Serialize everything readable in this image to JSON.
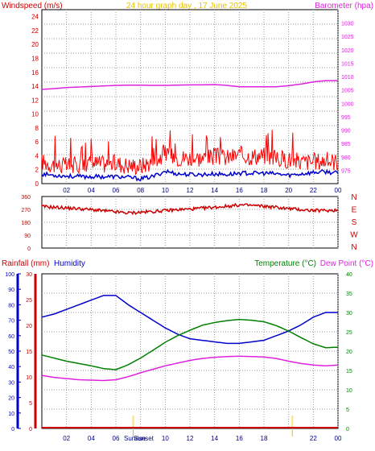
{
  "header": {
    "left_title": "Windspeed (m/s)",
    "center_title": "24 hour graph day , 17 June 2025",
    "right_title": "Barometer (hpa)"
  },
  "colors": {
    "wind_speed": "#ff0000",
    "wind_avg": "#0000cc",
    "barometer": "#dd22dd",
    "wind_dir": "#cc0000",
    "humidity": "#0000cc",
    "temperature": "#008000",
    "dew_point": "#dd22dd",
    "rainfall": "#cc0000",
    "grid": "#9a9a9a",
    "center_title": "#e8c400",
    "sun_marker": "#ffe27a"
  },
  "chart_data": [
    {
      "type": "line",
      "title": "24 hour graph day , 17 June 2025",
      "ylabel": "Windspeed (m/s)",
      "y2label": "Barometer (hpa)",
      "ylim": [
        0,
        25
      ],
      "y2lim": [
        970,
        1035
      ],
      "yticks": [
        "0",
        "2",
        "4",
        "6",
        "8",
        "10",
        "12",
        "14",
        "16",
        "18",
        "20",
        "22",
        "24"
      ],
      "y2ticks": [
        "975",
        "980",
        "985",
        "990",
        "995",
        "1000",
        "1005",
        "1010",
        "1015",
        "1020",
        "1025",
        "1030"
      ],
      "xticks": [
        "02",
        "04",
        "06",
        "08",
        "10",
        "12",
        "14",
        "16",
        "18",
        "20",
        "22",
        "00"
      ],
      "x": [
        0,
        1,
        2,
        3,
        4,
        5,
        6,
        7,
        8,
        9,
        10,
        11,
        12,
        13,
        14,
        15,
        16,
        17,
        18,
        19,
        20,
        21,
        22,
        23,
        24
      ],
      "series": [
        {
          "key": "wind_speed",
          "values": [
            3.0,
            2.6,
            2.4,
            2.6,
            2.8,
            2.7,
            2.8,
            2.5,
            2.4,
            3.0,
            4.2,
            3.6,
            3.6,
            3.5,
            3.8,
            3.6,
            4.0,
            3.8,
            3.9,
            3.5,
            3.3,
            3.0,
            3.0,
            3.2,
            3.0
          ]
        },
        {
          "key": "wind_avg",
          "values": [
            1.4,
            1.2,
            1.1,
            1.0,
            1.0,
            1.0,
            1.0,
            0.9,
            0.7,
            1.0,
            1.8,
            1.4,
            1.3,
            1.3,
            1.4,
            1.3,
            1.5,
            1.5,
            1.5,
            1.4,
            1.2,
            1.4,
            1.6,
            1.7,
            1.5
          ]
        },
        {
          "key": "barometer",
          "values": [
            1005.2,
            1005.5,
            1005.9,
            1006.1,
            1006.3,
            1006.5,
            1006.7,
            1006.8,
            1006.8,
            1006.7,
            1006.7,
            1006.8,
            1006.9,
            1006.9,
            1007.0,
            1006.7,
            1006.2,
            1006.2,
            1006.2,
            1006.2,
            1006.6,
            1007.2,
            1008.0,
            1008.5,
            1008.5
          ]
        }
      ]
    },
    {
      "type": "line",
      "series_key": "wind_dir",
      "ylim": [
        0,
        360
      ],
      "yticks": [
        "0",
        "90",
        "180",
        "270",
        "360"
      ],
      "y2ticks": [
        "N",
        "E",
        "S",
        "W",
        "N"
      ],
      "x": [
        0,
        1,
        2,
        3,
        4,
        5,
        6,
        7,
        8,
        9,
        10,
        11,
        12,
        13,
        14,
        15,
        16,
        17,
        18,
        19,
        20,
        21,
        22,
        23,
        24
      ],
      "values": [
        290,
        285,
        280,
        275,
        268,
        260,
        252,
        245,
        250,
        255,
        262,
        268,
        272,
        278,
        285,
        292,
        300,
        298,
        292,
        285,
        275,
        268,
        262,
        262,
        265
      ]
    },
    {
      "type": "line",
      "ylabel": "Rainfall (mm)",
      "ylabel2": "Humidity",
      "y2label": "Temperature (°C)",
      "y2label2": "Dew Point (°C)",
      "humidity_lim": [
        0,
        100
      ],
      "rain_lim": [
        0,
        30
      ],
      "temp_lim": [
        0,
        40
      ],
      "humidity_ticks": [
        "0",
        "10",
        "20",
        "30",
        "40",
        "50",
        "60",
        "70",
        "80",
        "90",
        "100"
      ],
      "rain_ticks": [
        "0",
        "5",
        "10",
        "15",
        "20",
        "25",
        "30"
      ],
      "temp_ticks": [
        "0",
        "5",
        "10",
        "15",
        "20",
        "25",
        "30",
        "35",
        "40"
      ],
      "xticks": [
        "02",
        "04",
        "06",
        "08",
        "10",
        "12",
        "14",
        "16",
        "18",
        "20",
        "22",
        "00"
      ],
      "sun_labels": [
        "Sunrise",
        "Sunset"
      ],
      "x": [
        0,
        1,
        2,
        3,
        4,
        5,
        6,
        7,
        8,
        9,
        10,
        11,
        12,
        13,
        14,
        15,
        16,
        17,
        18,
        19,
        20,
        21,
        22,
        23,
        24
      ],
      "series": [
        {
          "key": "humidity",
          "values": [
            72,
            74,
            77,
            80,
            83,
            86,
            86,
            80,
            75,
            70,
            65,
            61,
            58,
            57,
            56,
            55,
            55,
            56,
            57,
            60,
            63,
            67,
            72,
            75,
            75
          ]
        },
        {
          "key": "temperature",
          "values": [
            19.0,
            18.2,
            17.4,
            16.8,
            16.2,
            15.5,
            15.2,
            16.5,
            18.2,
            20.2,
            22.3,
            24.0,
            25.4,
            26.7,
            27.4,
            27.9,
            28.2,
            28.0,
            27.6,
            26.6,
            25.2,
            23.5,
            21.9,
            20.9,
            21.0
          ]
        },
        {
          "key": "dew_point",
          "values": [
            13.7,
            13.2,
            12.9,
            12.6,
            12.5,
            12.4,
            12.6,
            13.4,
            14.4,
            15.3,
            16.2,
            16.9,
            17.6,
            18.1,
            18.4,
            18.6,
            18.7,
            18.6,
            18.5,
            18.1,
            17.4,
            16.8,
            16.4,
            16.2,
            16.4
          ]
        },
        {
          "key": "rainfall",
          "values": [
            0,
            0,
            0,
            0,
            0,
            0,
            0,
            0,
            0,
            0,
            0,
            0,
            0,
            0,
            0,
            0,
            0,
            0,
            0,
            0,
            0,
            0,
            0,
            0,
            0
          ]
        }
      ]
    }
  ]
}
